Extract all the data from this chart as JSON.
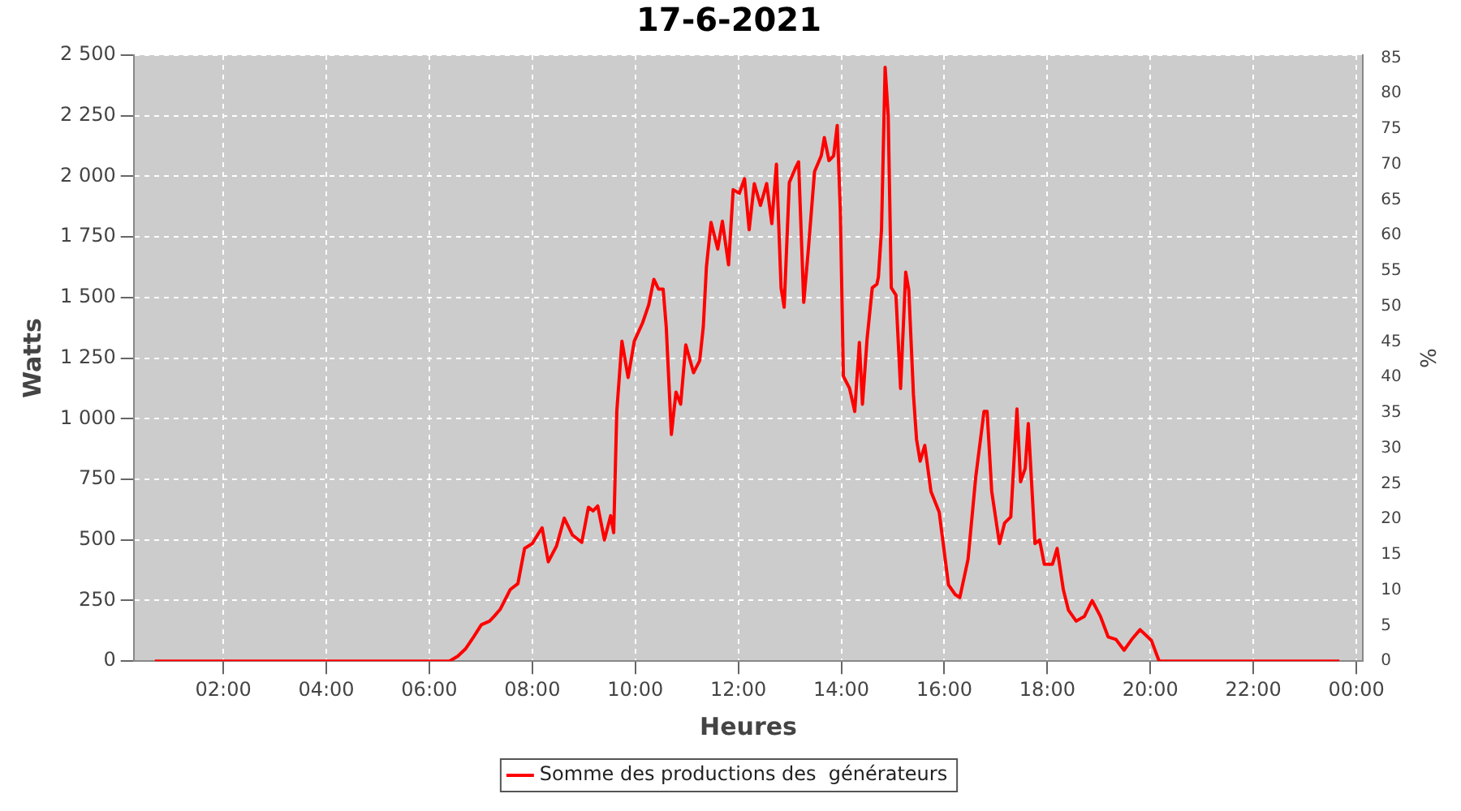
{
  "chart_data": {
    "type": "line",
    "title": "17-6-2021",
    "xlabel": "Heures",
    "ylabel": "Watts",
    "y2label": "%",
    "xlim": [
      0.26,
      24.13
    ],
    "xticks": [
      {
        "value": 2,
        "label": "02:00"
      },
      {
        "value": 4,
        "label": "04:00"
      },
      {
        "value": 6,
        "label": "06:00"
      },
      {
        "value": 8,
        "label": "08:00"
      },
      {
        "value": 10,
        "label": "10:00"
      },
      {
        "value": 12,
        "label": "12:00"
      },
      {
        "value": 14,
        "label": "14:00"
      },
      {
        "value": 16,
        "label": "16:00"
      },
      {
        "value": 18,
        "label": "18:00"
      },
      {
        "value": 20,
        "label": "20:00"
      },
      {
        "value": 22,
        "label": "22:00"
      },
      {
        "value": 24,
        "label": "00:00"
      }
    ],
    "ylim": [
      0,
      2500
    ],
    "yticks": [
      0,
      250,
      500,
      750,
      {
        "value": 1000,
        "label": "1 000"
      },
      {
        "value": 1250,
        "label": "1 250"
      },
      {
        "value": 1500,
        "label": "1 500"
      },
      {
        "value": 1750,
        "label": "1 750"
      },
      {
        "value": 2000,
        "label": "2 000"
      },
      {
        "value": 2250,
        "label": "2 250"
      },
      {
        "value": 2500,
        "label": "2 500"
      }
    ],
    "y2lim": [
      0,
      85.4
    ],
    "y2ticks": [
      0,
      5,
      10,
      15,
      20,
      25,
      30,
      35,
      40,
      45,
      50,
      55,
      60,
      65,
      70,
      75,
      80,
      85
    ],
    "grid": true,
    "legend": "bottom",
    "marker": "none",
    "line_style": "solid",
    "series": [
      {
        "name": "Somme des productions des  générateurs",
        "color": "#ff0000",
        "x": [
          0.67,
          6.39,
          6.55,
          6.7,
          6.86,
          7.01,
          7.17,
          7.26,
          7.38,
          7.57,
          7.72,
          7.85,
          8.0,
          8.1,
          8.19,
          8.31,
          8.47,
          8.62,
          8.78,
          8.96,
          9.09,
          9.18,
          9.27,
          9.4,
          9.52,
          9.58,
          9.64,
          9.74,
          9.86,
          9.98,
          10.14,
          10.26,
          10.36,
          10.45,
          10.54,
          10.6,
          10.7,
          10.79,
          10.88,
          10.98,
          11.13,
          11.25,
          11.32,
          11.38,
          11.47,
          11.6,
          11.69,
          11.81,
          11.9,
          12.02,
          12.12,
          12.21,
          12.31,
          12.43,
          12.55,
          12.65,
          12.74,
          12.83,
          12.89,
          12.99,
          13.11,
          13.17,
          13.27,
          13.36,
          13.48,
          13.61,
          13.67,
          13.76,
          13.85,
          13.92,
          13.98,
          14.04,
          14.16,
          14.26,
          14.35,
          14.41,
          14.5,
          14.6,
          14.69,
          14.72,
          14.78,
          14.85,
          14.91,
          14.97,
          15.06,
          15.15,
          15.25,
          15.31,
          15.4,
          15.46,
          15.53,
          15.62,
          15.74,
          15.9,
          16.08,
          16.21,
          16.3,
          16.46,
          16.61,
          16.77,
          16.83,
          16.92,
          17.07,
          17.17,
          17.29,
          17.41,
          17.48,
          17.57,
          17.63,
          17.76,
          17.85,
          17.94,
          18.1,
          18.19,
          18.31,
          18.41,
          18.56,
          18.72,
          18.87,
          19.03,
          19.18,
          19.33,
          19.49,
          19.64,
          19.8,
          20.02,
          20.17,
          23.67
        ],
        "values": [
          0,
          0,
          20,
          50,
          100,
          150,
          165,
          185,
          215,
          295,
          320,
          465,
          485,
          520,
          550,
          410,
          475,
          590,
          520,
          490,
          635,
          620,
          640,
          500,
          600,
          530,
          1030,
          1320,
          1170,
          1320,
          1395,
          1470,
          1575,
          1535,
          1535,
          1380,
          935,
          1110,
          1060,
          1305,
          1190,
          1240,
          1380,
          1625,
          1810,
          1700,
          1815,
          1635,
          1945,
          1930,
          1990,
          1780,
          1970,
          1880,
          1970,
          1805,
          2050,
          1540,
          1460,
          1975,
          2035,
          2060,
          1480,
          1700,
          2020,
          2085,
          2160,
          2065,
          2085,
          2210,
          1860,
          1175,
          1125,
          1030,
          1315,
          1060,
          1330,
          1540,
          1555,
          1585,
          1780,
          2450,
          2250,
          1540,
          1510,
          1125,
          1605,
          1530,
          1100,
          915,
          825,
          890,
          700,
          615,
          315,
          275,
          262,
          420,
          760,
          1030,
          1030,
          700,
          485,
          570,
          595,
          1040,
          740,
          795,
          980,
          485,
          500,
          400,
          400,
          465,
          295,
          210,
          165,
          185,
          250,
          185,
          100,
          90,
          45,
          90,
          130,
          85,
          0,
          0
        ]
      }
    ]
  }
}
